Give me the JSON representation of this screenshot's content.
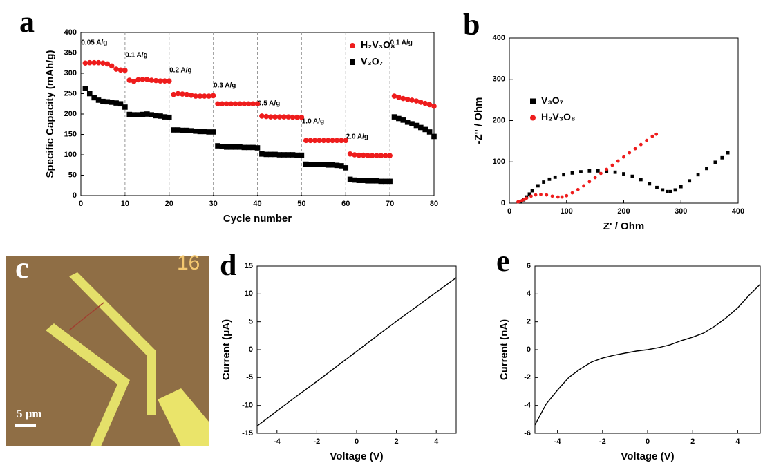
{
  "panel_labels": [
    "a",
    "b",
    "c",
    "d",
    "e"
  ],
  "micrograph": {
    "scale_bar": "5 μm",
    "labels": [
      "16"
    ]
  },
  "chart_data": [
    {
      "type": "scatter",
      "xlabel": "Cycle number",
      "ylabel": "Specific Capacity (mAh/g)",
      "xlim": [
        0,
        80
      ],
      "xticks": [
        0,
        10,
        20,
        30,
        40,
        50,
        60,
        70,
        80
      ],
      "ylim": [
        0,
        400
      ],
      "yticks": [
        0,
        50,
        100,
        150,
        200,
        250,
        300,
        350,
        400
      ],
      "vlines": [
        10,
        20,
        30,
        40,
        50,
        60,
        70
      ],
      "legend": "upper right",
      "annotations": [
        "0.05 A/g",
        "0.1 A/g",
        "0.2 A/g",
        "0.3 A/g",
        "0.5 A/g",
        "1.0 A/g",
        "2.0 A/g",
        "0.1 A/g"
      ],
      "x": [
        1,
        2,
        3,
        4,
        5,
        6,
        7,
        8,
        9,
        10,
        11,
        12,
        13,
        14,
        15,
        16,
        17,
        18,
        19,
        20,
        21,
        22,
        23,
        24,
        25,
        26,
        27,
        28,
        29,
        30,
        31,
        32,
        33,
        34,
        35,
        36,
        37,
        38,
        39,
        40,
        41,
        42,
        43,
        44,
        45,
        46,
        47,
        48,
        49,
        50,
        51,
        52,
        53,
        54,
        55,
        56,
        57,
        58,
        59,
        60,
        61,
        62,
        63,
        64,
        65,
        66,
        67,
        68,
        69,
        70,
        71,
        72,
        73,
        74,
        75,
        76,
        77,
        78,
        79,
        80
      ],
      "series": [
        {
          "name": "H₂V₃O₈",
          "color": "#ee1c1c",
          "marker": "circle",
          "values": [
            325,
            326,
            326,
            326,
            325,
            323,
            318,
            310,
            308,
            307,
            283,
            280,
            284,
            285,
            285,
            283,
            282,
            281,
            281,
            281,
            248,
            250,
            249,
            248,
            246,
            244,
            244,
            244,
            244,
            245,
            225,
            225,
            225,
            225,
            225,
            225,
            225,
            225,
            225,
            225,
            195,
            194,
            193,
            193,
            193,
            193,
            193,
            192,
            192,
            192,
            135,
            135,
            135,
            135,
            135,
            135,
            135,
            135,
            135,
            135,
            102,
            100,
            99,
            99,
            98,
            98,
            98,
            98,
            98,
            98,
            244,
            241,
            238,
            236,
            234,
            232,
            229,
            226,
            223,
            219
          ]
        },
        {
          "name": "V₃O₇",
          "color": "#000000",
          "marker": "square",
          "values": [
            263,
            250,
            240,
            234,
            231,
            230,
            229,
            227,
            225,
            217,
            199,
            198,
            198,
            199,
            200,
            198,
            196,
            195,
            193,
            192,
            161,
            161,
            160,
            160,
            159,
            158,
            157,
            157,
            156,
            156,
            122,
            120,
            119,
            119,
            119,
            119,
            118,
            118,
            118,
            117,
            102,
            101,
            101,
            101,
            100,
            100,
            100,
            100,
            99,
            99,
            77,
            76,
            76,
            76,
            76,
            75,
            75,
            74,
            73,
            68,
            40,
            38,
            37,
            37,
            36,
            36,
            36,
            35,
            35,
            35,
            193,
            189,
            185,
            180,
            176,
            172,
            167,
            162,
            156,
            145
          ]
        }
      ]
    },
    {
      "type": "scatter",
      "xlabel": "Z' / Ohm",
      "ylabel": "-Z'' / Ohm",
      "xlim": [
        0,
        400
      ],
      "xticks": [
        0,
        100,
        200,
        300,
        400
      ],
      "ylim": [
        0,
        400
      ],
      "yticks": [
        0,
        100,
        200,
        300,
        400
      ],
      "legend": "center left",
      "series": [
        {
          "name": "V₃O₇",
          "color": "#000000",
          "marker": "square",
          "x": [
            20,
            25,
            30,
            35,
            40,
            50,
            60,
            70,
            80,
            95,
            110,
            125,
            140,
            155,
            170,
            185,
            200,
            215,
            230,
            245,
            258,
            268,
            276,
            282,
            290,
            300,
            315,
            330,
            345,
            360,
            372,
            382
          ],
          "values": [
            3,
            8,
            15,
            22,
            30,
            42,
            51,
            58,
            63,
            69,
            73,
            76,
            78,
            78,
            77,
            75,
            71,
            65,
            57,
            47,
            38,
            32,
            28,
            28,
            32,
            40,
            54,
            69,
            84,
            99,
            110,
            122
          ]
        },
        {
          "name": "H₂V₃O₈",
          "color": "#ee1c1c",
          "marker": "circle",
          "x": [
            15,
            18,
            22,
            26,
            30,
            38,
            46,
            55,
            65,
            75,
            85,
            92,
            100,
            110,
            120,
            130,
            140,
            150,
            160,
            170,
            180,
            190,
            200,
            210,
            220,
            230,
            240,
            250,
            257
          ],
          "values": [
            3,
            4,
            6,
            9,
            12,
            17,
            20,
            21,
            20,
            17,
            15,
            15,
            18,
            25,
            33,
            42,
            52,
            62,
            72,
            82,
            92,
            102,
            112,
            122,
            132,
            142,
            152,
            162,
            167
          ]
        }
      ]
    },
    {
      "type": "line",
      "xlabel": "Voltage (V)",
      "ylabel": "Current (μA)",
      "color": "#000000",
      "xlim": [
        -5,
        5
      ],
      "xticks": [
        -4,
        -2,
        0,
        2,
        4
      ],
      "ylim": [
        -15,
        15
      ],
      "yticks": [
        -15,
        -10,
        -5,
        0,
        5,
        10,
        15
      ],
      "x": [
        -5,
        -4,
        -3,
        -2,
        -1,
        0,
        1,
        2,
        3,
        4,
        5
      ],
      "values": [
        -13.7,
        -11.0,
        -8.3,
        -5.7,
        -3.0,
        -0.3,
        2.4,
        5.1,
        7.7,
        10.3,
        12.9
      ]
    },
    {
      "type": "line",
      "xlabel": "Voltage (V)",
      "ylabel": "Current (nA)",
      "color": "#000000",
      "xlim": [
        -5,
        5
      ],
      "xticks": [
        -4,
        -2,
        0,
        2,
        4
      ],
      "ylim": [
        -6,
        6
      ],
      "yticks": [
        -6,
        -4,
        -2,
        0,
        2,
        4,
        6
      ],
      "x": [
        -5,
        -4.5,
        -4,
        -3.5,
        -3,
        -2.5,
        -2,
        -1.5,
        -1,
        -0.5,
        0,
        0.5,
        1,
        1.5,
        2,
        2.5,
        3,
        3.5,
        4,
        4.5,
        5
      ],
      "values": [
        -5.4,
        -3.9,
        -2.9,
        -2.0,
        -1.4,
        -0.9,
        -0.6,
        -0.4,
        -0.25,
        -0.1,
        0,
        0.15,
        0.35,
        0.65,
        0.9,
        1.2,
        1.7,
        2.3,
        3.0,
        3.9,
        4.7
      ]
    }
  ]
}
